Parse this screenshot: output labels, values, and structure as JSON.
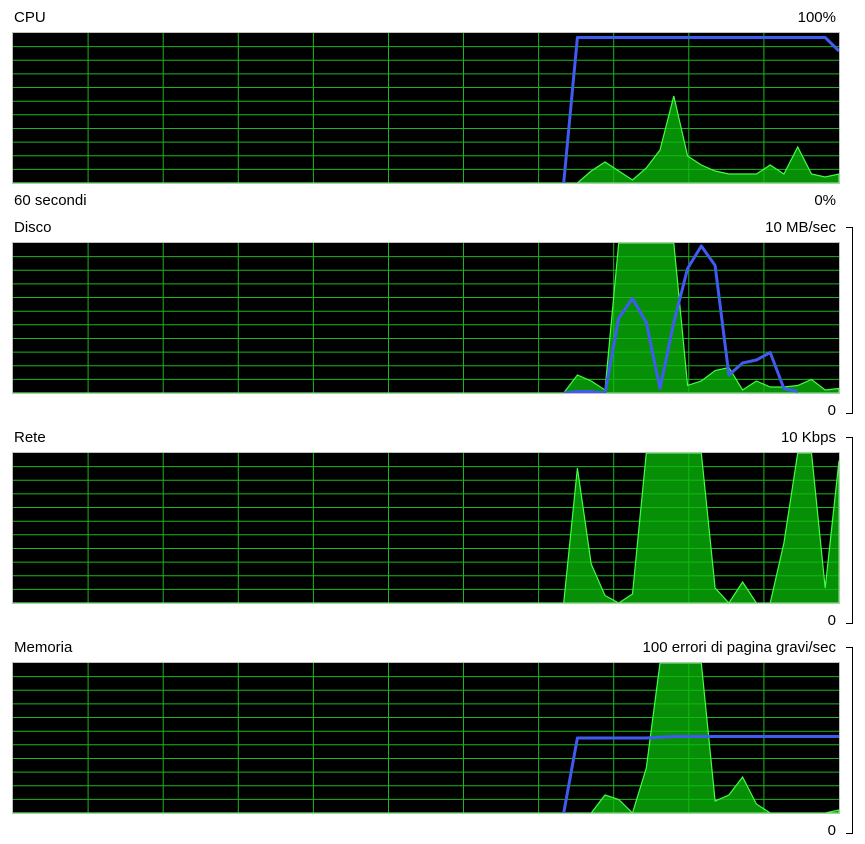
{
  "colors": {
    "grid": "#1db51d",
    "fill": "#0bbf0b",
    "stroke": "#41ff41",
    "line": "#3f5bf0",
    "background": "#000000"
  },
  "time_axis": {
    "span_label": "60 secondi"
  },
  "chart_data": [
    {
      "type": "area",
      "title": "CPU",
      "max_label": "100%",
      "min_label": "0%",
      "xlim": [
        0,
        60
      ],
      "ylim": [
        0,
        100
      ],
      "series": [
        {
          "values": [
            0,
            0,
            0,
            0,
            0,
            0,
            0,
            0,
            0,
            0,
            0,
            0,
            0,
            0,
            0,
            0,
            0,
            0,
            0,
            0,
            0,
            0,
            0,
            0,
            0,
            0,
            0,
            0,
            0,
            0,
            0,
            0,
            0,
            0,
            0,
            0,
            0,
            0,
            0,
            0,
            0,
            0,
            8,
            14,
            8,
            2,
            10,
            22,
            58,
            18,
            12,
            8,
            6,
            6,
            6,
            12,
            6,
            24,
            6,
            4,
            6
          ]
        },
        {
          "values": [
            null,
            null,
            null,
            null,
            null,
            null,
            null,
            null,
            null,
            null,
            null,
            null,
            null,
            null,
            null,
            null,
            null,
            null,
            null,
            null,
            null,
            null,
            null,
            null,
            null,
            null,
            null,
            null,
            null,
            null,
            null,
            null,
            null,
            null,
            null,
            null,
            null,
            null,
            null,
            null,
            0,
            97,
            97,
            97,
            97,
            97,
            97,
            97,
            97,
            97,
            97,
            97,
            97,
            97,
            97,
            97,
            97,
            97,
            97,
            97,
            88
          ]
        }
      ]
    },
    {
      "type": "area",
      "title": "Disco",
      "max_label": "10 MB/sec",
      "min_label": "0",
      "xlim": [
        0,
        60
      ],
      "ylim": [
        0,
        10
      ],
      "series": [
        {
          "values": [
            0,
            0,
            0,
            0,
            0,
            0,
            0,
            0,
            0,
            0,
            0,
            0,
            0,
            0,
            0,
            0,
            0,
            0,
            0,
            0,
            0,
            0,
            0,
            0,
            0,
            0,
            0,
            0,
            0,
            0,
            0,
            0,
            0,
            0,
            0,
            0,
            0,
            0,
            0,
            0,
            0,
            1.2,
            0.8,
            0.2,
            10,
            10,
            10,
            10,
            10,
            0.5,
            0.8,
            1.5,
            1.7,
            0.2,
            0.8,
            0.4,
            0.4,
            0.5,
            0.9,
            0.2,
            0.3
          ]
        },
        {
          "values": [
            null,
            null,
            null,
            null,
            null,
            null,
            null,
            null,
            null,
            null,
            null,
            null,
            null,
            null,
            null,
            null,
            null,
            null,
            null,
            null,
            null,
            null,
            null,
            null,
            null,
            null,
            null,
            null,
            null,
            null,
            null,
            null,
            null,
            null,
            null,
            null,
            null,
            null,
            null,
            null,
            0,
            0.1,
            0.1,
            0,
            5,
            6.3,
            4.7,
            0.3,
            4.7,
            8.3,
            9.8,
            8.5,
            1.2,
            2,
            2.2,
            2.7,
            0.3,
            0.1
          ]
        }
      ]
    },
    {
      "type": "area",
      "title": "Rete",
      "max_label": "10 Kbps",
      "min_label": "0",
      "xlim": [
        0,
        60
      ],
      "ylim": [
        0,
        10
      ],
      "series": [
        {
          "values": [
            0,
            0,
            0,
            0,
            0,
            0,
            0,
            0,
            0,
            0,
            0,
            0,
            0,
            0,
            0,
            0,
            0,
            0,
            0,
            0,
            0,
            0,
            0,
            0,
            0,
            0,
            0,
            0,
            0,
            0,
            0,
            0,
            0,
            0,
            0,
            0,
            0,
            0,
            0,
            0,
            0,
            9,
            2.6,
            0.5,
            0,
            0.6,
            10,
            10,
            10,
            10,
            10,
            1,
            0,
            1.4,
            0,
            0,
            4,
            10,
            10,
            1,
            9.5
          ]
        }
      ]
    },
    {
      "type": "area",
      "title": "Memoria",
      "max_label": "100 errori di pagina gravi/sec",
      "min_label": "0",
      "xlim": [
        0,
        60
      ],
      "ylim": [
        0,
        100
      ],
      "series": [
        {
          "values": [
            0,
            0,
            0,
            0,
            0,
            0,
            0,
            0,
            0,
            0,
            0,
            0,
            0,
            0,
            0,
            0,
            0,
            0,
            0,
            0,
            0,
            0,
            0,
            0,
            0,
            0,
            0,
            0,
            0,
            0,
            0,
            0,
            0,
            0,
            0,
            0,
            0,
            0,
            0,
            0,
            0,
            0,
            0,
            12,
            9,
            0,
            30,
            100,
            100,
            100,
            100,
            8,
            12,
            24,
            6,
            0,
            0,
            0,
            0,
            0,
            2
          ]
        },
        {
          "values": [
            null,
            null,
            null,
            null,
            null,
            null,
            null,
            null,
            null,
            null,
            null,
            null,
            null,
            null,
            null,
            null,
            null,
            null,
            null,
            null,
            null,
            null,
            null,
            null,
            null,
            null,
            null,
            null,
            null,
            null,
            null,
            null,
            null,
            null,
            null,
            null,
            null,
            null,
            null,
            null,
            0,
            50,
            50,
            50,
            50,
            50,
            50,
            50.5,
            51,
            51,
            51,
            51,
            51,
            51,
            51,
            51,
            51,
            51,
            51,
            51,
            51
          ]
        }
      ]
    }
  ]
}
